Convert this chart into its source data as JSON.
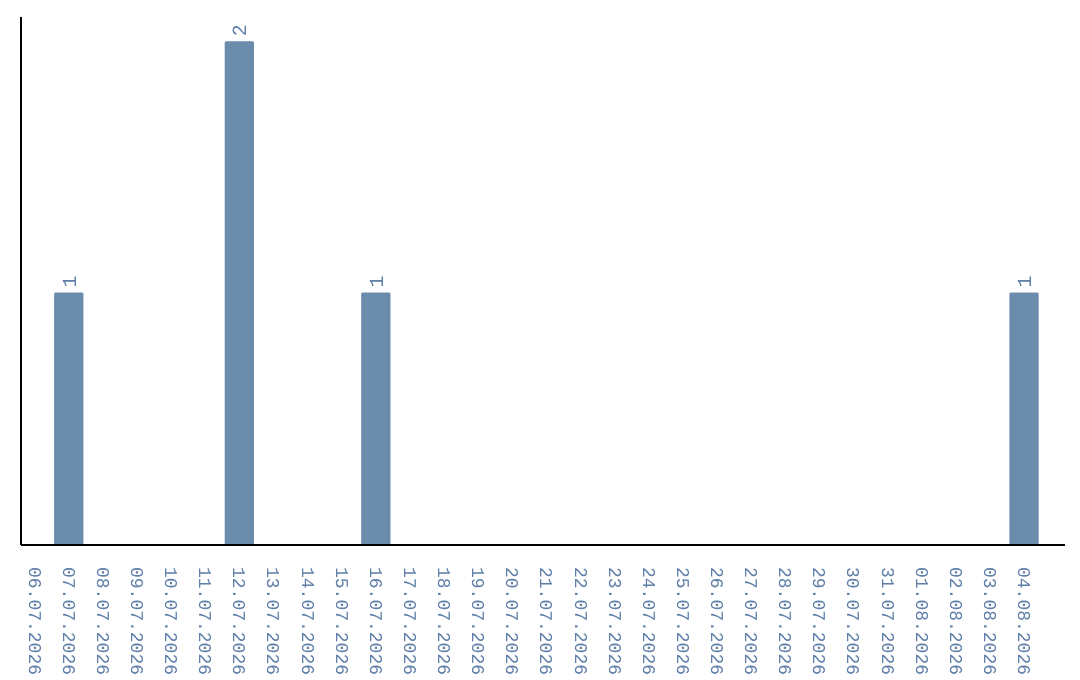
{
  "chart_data": {
    "type": "bar",
    "categories": [
      "06.07.2026",
      "07.07.2026",
      "08.07.2026",
      "09.07.2026",
      "10.07.2026",
      "11.07.2026",
      "12.07.2026",
      "13.07.2026",
      "14.07.2026",
      "15.07.2026",
      "16.07.2026",
      "17.07.2026",
      "18.07.2026",
      "19.07.2026",
      "20.07.2026",
      "21.07.2026",
      "22.07.2026",
      "23.07.2026",
      "24.07.2026",
      "25.07.2026",
      "26.07.2026",
      "27.07.2026",
      "28.07.2026",
      "29.07.2026",
      "30.07.2026",
      "31.07.2026",
      "01.08.2026",
      "02.08.2026",
      "03.08.2026",
      "04.08.2026"
    ],
    "values": [
      0,
      1,
      0,
      0,
      0,
      0,
      2,
      0,
      0,
      0,
      1,
      0,
      0,
      0,
      0,
      0,
      0,
      0,
      0,
      0,
      0,
      0,
      0,
      0,
      0,
      0,
      0,
      0,
      0,
      1
    ],
    "value_labels": [
      null,
      "1",
      null,
      null,
      null,
      null,
      "2",
      null,
      null,
      null,
      "1",
      null,
      null,
      null,
      null,
      null,
      null,
      null,
      null,
      null,
      null,
      null,
      null,
      null,
      null,
      null,
      null,
      null,
      null,
      "1"
    ],
    "color": "#6b8cab",
    "grid": false
  }
}
